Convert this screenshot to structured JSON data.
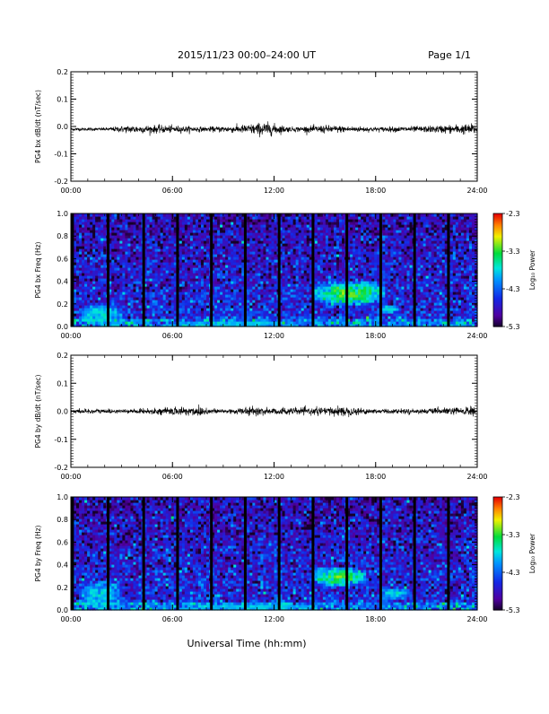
{
  "header": {
    "title": "2015/11/23  00:00–24:00 UT",
    "page": "Page 1/1"
  },
  "footer": {
    "xlabel": "Universal Time (hh:mm)"
  },
  "colorbar": {
    "label": "Log₁₀ Power",
    "ticks": [
      "-2.3",
      "-3.3",
      "-4.3",
      "-5.3"
    ],
    "min": -5.3,
    "max": -2.3
  },
  "chart_data": [
    {
      "type": "line",
      "title": "",
      "ylabel": "PG4 bx dB/dt (nT/sec)",
      "xlabel": "",
      "x_ticks": [
        "00:00",
        "06:00",
        "12:00",
        "18:00",
        "24:00"
      ],
      "y_ticks": [
        "0.2",
        "0.1",
        "0.0",
        "-0.1",
        "-0.2"
      ],
      "xlim": [
        0,
        24
      ],
      "ylim": [
        -0.2,
        0.2
      ],
      "x_unit": "hours UT",
      "baseline": -0.01,
      "envelope": [
        {
          "x": 0,
          "amp": 0.004
        },
        {
          "x": 2,
          "amp": 0.004
        },
        {
          "x": 3.5,
          "amp": 0.01
        },
        {
          "x": 5.5,
          "amp": 0.01
        },
        {
          "x": 8,
          "amp": 0.006
        },
        {
          "x": 10,
          "amp": 0.01
        },
        {
          "x": 11.5,
          "amp": 0.018
        },
        {
          "x": 12,
          "amp": 0.014
        },
        {
          "x": 13,
          "amp": 0.006
        },
        {
          "x": 15,
          "amp": 0.01
        },
        {
          "x": 16.5,
          "amp": 0.008
        },
        {
          "x": 18,
          "amp": 0.006
        },
        {
          "x": 21,
          "amp": 0.008
        },
        {
          "x": 23.8,
          "amp": 0.014
        },
        {
          "x": 24,
          "amp": 0.004
        }
      ]
    },
    {
      "type": "heatmap",
      "title": "",
      "ylabel": "PG4 bx Freq (Hz)",
      "xlabel": "",
      "x_ticks": [
        "00:00",
        "06:00",
        "12:00",
        "18:00",
        "24:00"
      ],
      "y_ticks": [
        "1.0",
        "0.8",
        "0.6",
        "0.4",
        "0.2",
        "0.0"
      ],
      "xlim": [
        0,
        24
      ],
      "ylim": [
        0,
        1.0
      ],
      "z_range": [
        -5.3,
        -2.3
      ],
      "gap_times": [
        0.1,
        2.2,
        4.3,
        6.3,
        8.3,
        10.3,
        12.3,
        14.3,
        16.3,
        18.3,
        20.3,
        22.3
      ],
      "features": [
        {
          "x": [
            14.3,
            18.5
          ],
          "f": [
            0.2,
            0.4
          ],
          "level": -3.0
        },
        {
          "x": [
            18.2,
            19.5
          ],
          "f": [
            0.12,
            0.2
          ],
          "level": -3.6
        },
        {
          "x": [
            0.5,
            3.0
          ],
          "f": [
            0.02,
            0.2
          ],
          "level": -3.6
        },
        {
          "x": [
            6.0,
            14.3
          ],
          "f": [
            0.0,
            0.05
          ],
          "level": -3.8
        }
      ]
    },
    {
      "type": "line",
      "title": "",
      "ylabel": "PG4 by dB/dt (nT/sec)",
      "xlabel": "",
      "x_ticks": [
        "00:00",
        "06:00",
        "12:00",
        "18:00",
        "24:00"
      ],
      "y_ticks": [
        "0.2",
        "0.1",
        "0.0",
        "-0.1",
        "-0.2"
      ],
      "xlim": [
        0,
        24
      ],
      "ylim": [
        -0.2,
        0.2
      ],
      "x_unit": "hours UT",
      "baseline": 0.0,
      "envelope": [
        {
          "x": 0,
          "amp": 0.004
        },
        {
          "x": 1.5,
          "amp": 0.007
        },
        {
          "x": 3,
          "amp": 0.004
        },
        {
          "x": 5.5,
          "amp": 0.008
        },
        {
          "x": 7.5,
          "amp": 0.014
        },
        {
          "x": 8.5,
          "amp": 0.006
        },
        {
          "x": 11,
          "amp": 0.01
        },
        {
          "x": 14,
          "amp": 0.008
        },
        {
          "x": 16,
          "amp": 0.012
        },
        {
          "x": 18,
          "amp": 0.006
        },
        {
          "x": 21,
          "amp": 0.006
        },
        {
          "x": 23.8,
          "amp": 0.012
        },
        {
          "x": 24,
          "amp": 0.004
        }
      ]
    },
    {
      "type": "heatmap",
      "title": "",
      "ylabel": "PG4 by Freq (Hz)",
      "xlabel": "",
      "x_ticks": [
        "00:00",
        "06:00",
        "12:00",
        "18:00",
        "24:00"
      ],
      "y_ticks": [
        "1.0",
        "0.8",
        "0.6",
        "0.4",
        "0.2",
        "0.0"
      ],
      "xlim": [
        0,
        24
      ],
      "ylim": [
        0,
        1.0
      ],
      "z_range": [
        -5.3,
        -2.3
      ],
      "gap_times": [
        0.1,
        2.2,
        4.3,
        6.3,
        8.3,
        10.3,
        12.3,
        14.3,
        16.3,
        18.3,
        20.3,
        22.3
      ],
      "features": [
        {
          "x": [
            14.3,
            17.5
          ],
          "f": [
            0.22,
            0.38
          ],
          "level": -3.0
        },
        {
          "x": [
            18.2,
            20.0
          ],
          "f": [
            0.1,
            0.2
          ],
          "level": -3.6
        },
        {
          "x": [
            0.5,
            3.0
          ],
          "f": [
            0.02,
            0.25
          ],
          "level": -3.6
        },
        {
          "x": [
            6.0,
            14.3
          ],
          "f": [
            0.0,
            0.06
          ],
          "level": -3.8
        }
      ]
    }
  ]
}
